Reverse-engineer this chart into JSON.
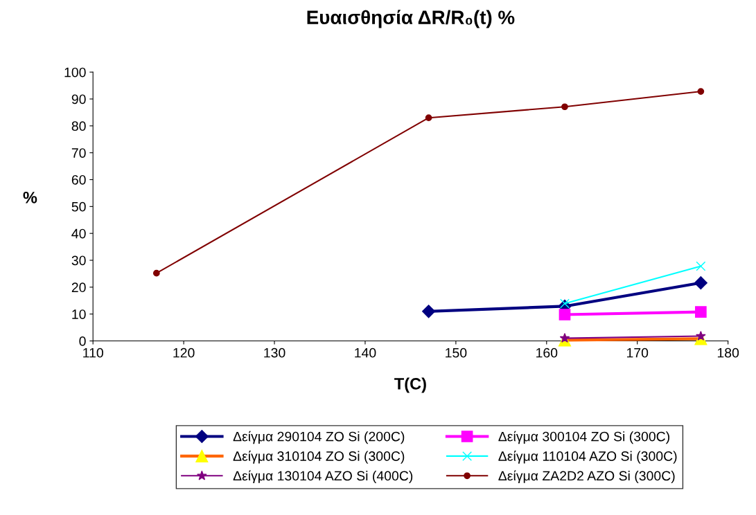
{
  "chart_data": {
    "type": "line",
    "title": "Ευαισθησία ΔR/R₀(t) %",
    "xlabel": "T(C)",
    "ylabel": "%",
    "xlim": [
      110,
      180
    ],
    "xticks": [
      110,
      120,
      130,
      140,
      150,
      160,
      170,
      180
    ],
    "ylim": [
      0,
      100
    ],
    "yticks": [
      0,
      10,
      20,
      30,
      40,
      50,
      60,
      70,
      80,
      90,
      100
    ],
    "grid": false,
    "legend": "bottom",
    "series": [
      {
        "name": "Δείγμα 290104 ZO Si (200C)",
        "color": "#000080",
        "marker": "diamond",
        "x": [
          147,
          162,
          177
        ],
        "values": [
          11,
          12.9,
          21.6
        ]
      },
      {
        "name": "Δείγμα 300104 ZO Si (300C)",
        "color": "#ff00ff",
        "marker": "square",
        "x": [
          162,
          177
        ],
        "values": [
          9.8,
          10.8
        ]
      },
      {
        "name": "Δείγμα 310104 ZO Si (300C)",
        "color": "#ff6600",
        "marker": "triangle",
        "x": [
          162,
          177
        ],
        "values": [
          0.3,
          0.8
        ]
      },
      {
        "name": "Δείγμα 110104 AZO Si (300C)",
        "color": "#00ffff",
        "marker": "cross",
        "x": [
          162,
          177
        ],
        "values": [
          13.9,
          27.8
        ]
      },
      {
        "name": "Δείγμα 130104 AZO Si (400C)",
        "color": "#800080",
        "marker": "star",
        "x": [
          162,
          177
        ],
        "values": [
          1,
          1.8
        ]
      },
      {
        "name": "Δείγμα ZA2D2 AZO Si (300C)",
        "color": "#800000",
        "marker": "circle",
        "x": [
          117,
          147,
          162,
          177
        ],
        "values": [
          25.2,
          83,
          87.1,
          92.8
        ]
      }
    ]
  }
}
